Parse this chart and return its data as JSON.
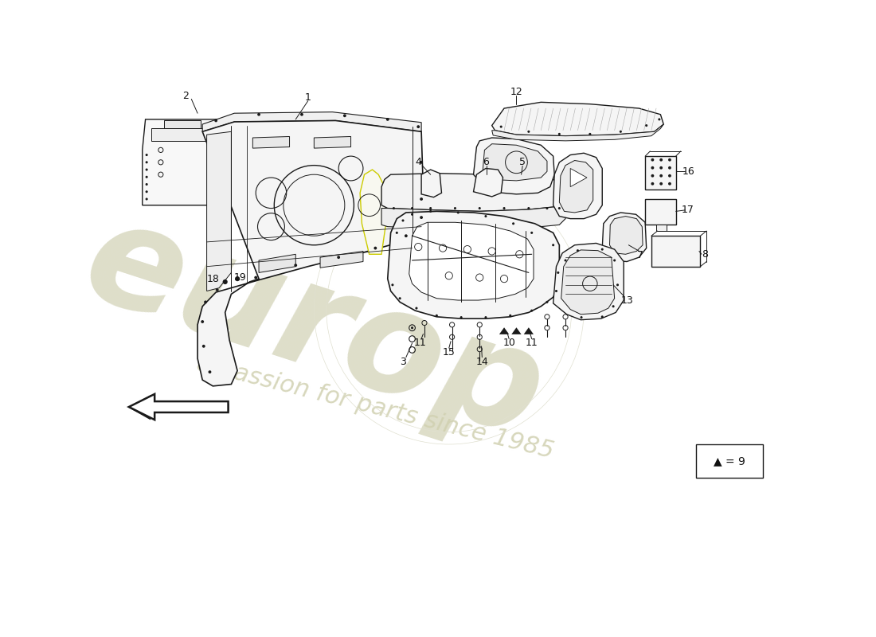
{
  "background_color": "#ffffff",
  "line_color": "#1a1a1a",
  "watermark_color1": "#d8d8c0",
  "watermark_color2": "#d0d0b0"
}
